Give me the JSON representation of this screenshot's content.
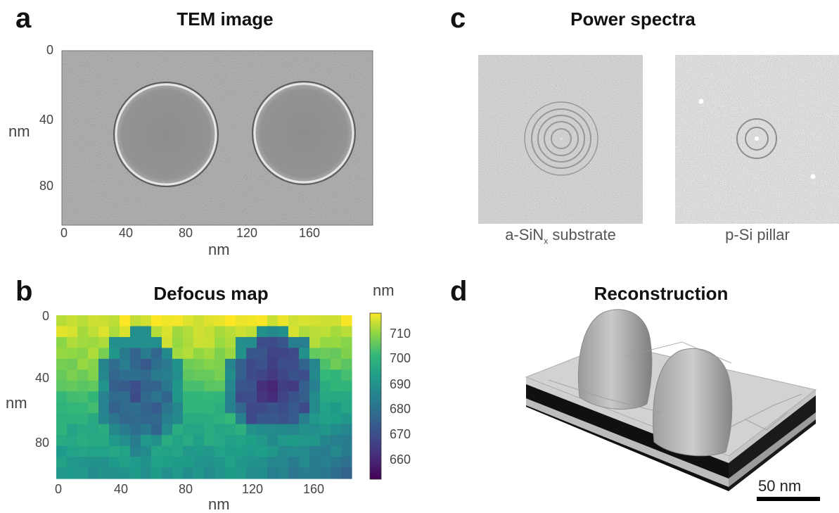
{
  "panel_a": {
    "letter": "a",
    "title": "TEM image",
    "x_ticks": [
      "0",
      "40",
      "80",
      "120",
      "160"
    ],
    "y_ticks": [
      "0",
      "40",
      "80"
    ],
    "xlabel": "nm",
    "ylabel": "nm"
  },
  "panel_b": {
    "letter": "b",
    "title": "Defocus map",
    "x_ticks": [
      "0",
      "40",
      "80",
      "120",
      "160"
    ],
    "y_ticks": [
      "0",
      "40",
      "80"
    ],
    "xlabel": "nm",
    "ylabel": "nm",
    "colorbar_unit": "nm",
    "colorbar_ticks": [
      "710",
      "700",
      "690",
      "680",
      "670",
      "660"
    ]
  },
  "panel_c": {
    "letter": "c",
    "title": "Power spectra",
    "captions": {
      "left_main": "a-SiN",
      "left_sub": "x",
      "left_rest": " substrate",
      "right": "p-Si pillar"
    }
  },
  "panel_d": {
    "letter": "d",
    "title": "Reconstruction",
    "scalebar_label": "50 nm"
  },
  "colors": {
    "tem_background": "#9a9a9a",
    "viridis_high": "#f3e61f",
    "viridis_low": "#440c55",
    "render_surface": "#c8c8c8"
  },
  "chart_data": [
    {
      "type": "heatmap",
      "title": "Defocus map",
      "xlabel": "nm",
      "ylabel": "nm",
      "xlim": [
        0,
        180
      ],
      "ylim": [
        0,
        100
      ],
      "colorbar_range": [
        653,
        717
      ],
      "colorbar_unit": "nm"
    }
  ]
}
